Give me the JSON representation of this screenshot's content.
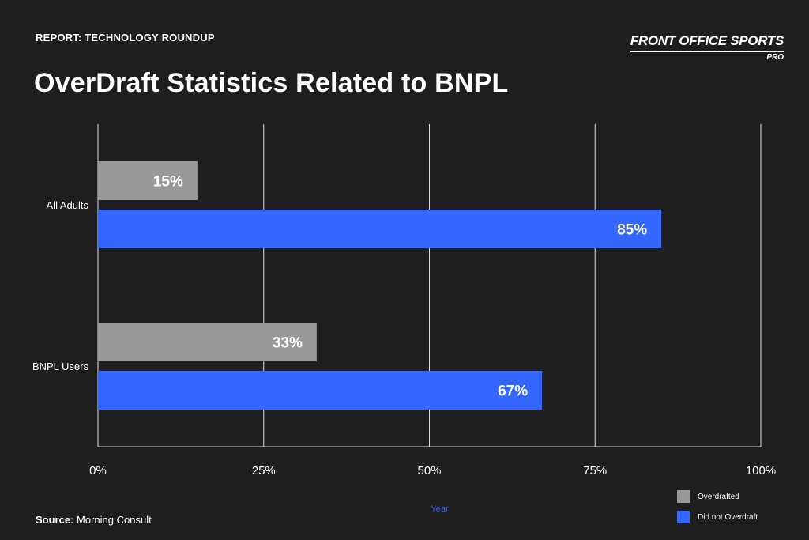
{
  "header": {
    "eyebrow": "REPORT: TECHNOLOGY ROUNDUP",
    "title": "OverDraft Statistics Related to BNPL",
    "brand_main": "FRONT OFFICE SPORTS",
    "brand_sub": "PRO"
  },
  "footer": {
    "source_label": "Source:",
    "source_value": "Morning Consult"
  },
  "colors": {
    "background": "#1e1e1e",
    "overdrafted": "#999999",
    "did_not_overdraft": "#3366ff",
    "grid": "#ffffff",
    "xlabel": "#3366ff"
  },
  "chart_data": {
    "type": "bar",
    "orientation": "horizontal",
    "categories": [
      "All Adults",
      "BNPL Users"
    ],
    "series": [
      {
        "name": "Overdrafted",
        "values": [
          15,
          33
        ],
        "labels": [
          "15%",
          "33%"
        ]
      },
      {
        "name": "Did not Overdraft",
        "values": [
          85,
          67
        ],
        "labels": [
          "85%",
          "67%"
        ]
      }
    ],
    "xlabel": "Year",
    "ylabel": "",
    "xlim": [
      0,
      100
    ],
    "ticks": [
      "0%",
      "25%",
      "50%",
      "75%",
      "100%"
    ],
    "tick_values": [
      0,
      25,
      50,
      75,
      100
    ],
    "grid": true,
    "legend_position": "bottom-right"
  }
}
